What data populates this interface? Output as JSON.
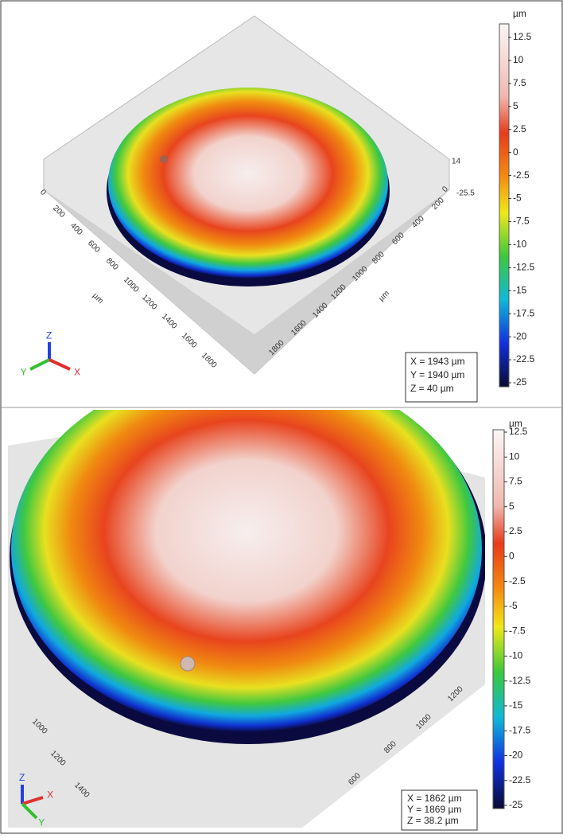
{
  "panels": [
    {
      "colorbar": {
        "unit": "µm",
        "ticks": [
          "12.5",
          "10",
          "7.5",
          "5",
          "2.5",
          "0",
          "-2.5",
          "-5",
          "-7.5",
          "-10",
          "-12.5",
          "-15",
          "-17.5",
          "-20",
          "-22.5",
          "-25"
        ]
      },
      "z_ticks": [
        "14",
        "-25.5"
      ],
      "left_axis": {
        "ticks": [
          "0",
          "200",
          "400",
          "600",
          "800",
          "1000",
          "1200",
          "1400",
          "1600",
          "1800"
        ],
        "label": "µm"
      },
      "right_axis": {
        "ticks": [
          "0",
          "200",
          "400",
          "600",
          "800",
          "1000",
          "1200",
          "1400",
          "1600",
          "1800"
        ],
        "label": "µm"
      },
      "info": [
        "X = 1943 µm",
        "Y = 1940 µm",
        "Z = 40 µm"
      ],
      "triad": [
        "Z",
        "Y",
        "X"
      ]
    },
    {
      "colorbar": {
        "unit": "µm",
        "ticks": [
          "12.5",
          "10",
          "7.5",
          "5",
          "2.5",
          "0",
          "-2.5",
          "-5",
          "-7.5",
          "-10",
          "-12.5",
          "-15",
          "-17.5",
          "-20",
          "-22.5",
          "-25"
        ]
      },
      "left_axis": {
        "ticks": [
          "1000",
          "1200",
          "1400"
        ]
      },
      "right_axis": {
        "ticks": [
          "1200",
          "1000",
          "800",
          "600"
        ]
      },
      "info": [
        "X = 1862 µm",
        "Y = 1869 µm",
        "Z = 38.2 µm"
      ],
      "triad": [
        "Z",
        "X",
        "Y"
      ]
    }
  ]
}
